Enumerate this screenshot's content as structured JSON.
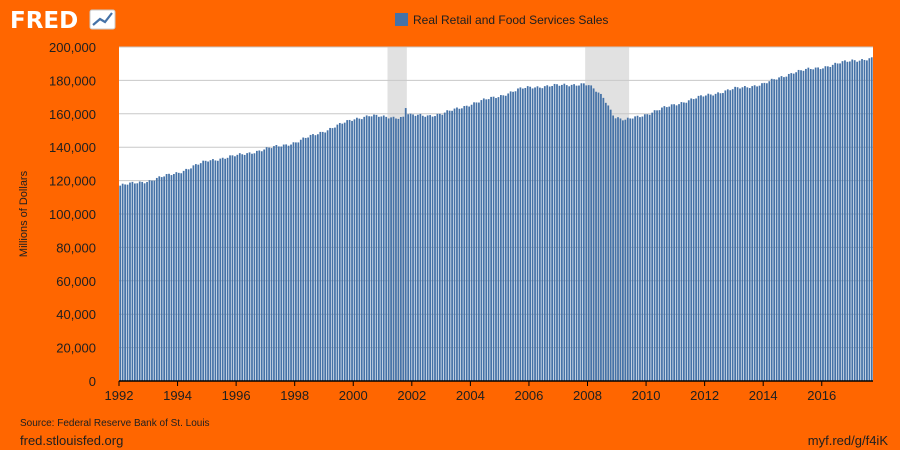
{
  "brand": {
    "name": "FRED",
    "logo_icon": "trend-chart-icon"
  },
  "footer": {
    "source": "Source: Federal Reserve Bank of St. Louis",
    "site": "fred.stlouisfed.org",
    "short_link": "myf.red/g/f4iK"
  },
  "colors": {
    "background": "#ff6600",
    "plot_bg": "#ffffff",
    "bar": "#4572a7",
    "recession": "#e1e1e1",
    "grid": "#c8c8c8"
  },
  "chart_data": {
    "type": "bar",
    "title": "",
    "legend": [
      "Real Retail and Food Services Sales"
    ],
    "legend_placement": "top-center",
    "ylabel": "Millions of Dollars",
    "xlabel": "",
    "ylim": [
      0,
      200000
    ],
    "xlim": [
      1992.0,
      2017.75
    ],
    "grid": true,
    "y_ticks": [
      0,
      20000,
      40000,
      60000,
      80000,
      100000,
      120000,
      140000,
      160000,
      180000,
      200000
    ],
    "y_tick_labels": [
      "0",
      "20,000",
      "40,000",
      "60,000",
      "80,000",
      "100,000",
      "120,000",
      "140,000",
      "160,000",
      "180,000",
      "200,000"
    ],
    "x_ticks": [
      1992,
      1994,
      1996,
      1998,
      2000,
      2002,
      2004,
      2006,
      2008,
      2010,
      2012,
      2014,
      2016
    ],
    "x_tick_labels": [
      "1992",
      "1994",
      "1996",
      "1998",
      "2000",
      "2002",
      "2004",
      "2006",
      "2008",
      "2010",
      "2012",
      "2014",
      "2016"
    ],
    "recessions": [
      [
        2001.17,
        2001.83
      ],
      [
        2007.92,
        2009.42
      ]
    ],
    "series": [
      {
        "name": "Real Retail and Food Services Sales",
        "frequency": "monthly",
        "start": 1992.0,
        "anchors": [
          [
            1992.0,
            117000
          ],
          [
            1993.0,
            120000
          ],
          [
            1994.0,
            125000
          ],
          [
            1995.0,
            132000
          ],
          [
            1996.0,
            135000
          ],
          [
            1997.0,
            139000
          ],
          [
            1998.0,
            143000
          ],
          [
            1999.0,
            150000
          ],
          [
            2000.0,
            157000
          ],
          [
            2000.5,
            159000
          ],
          [
            2001.0,
            158000
          ],
          [
            2001.7,
            158000
          ],
          [
            2001.75,
            164000
          ],
          [
            2001.85,
            159000
          ],
          [
            2002.5,
            159000
          ],
          [
            2003.0,
            160000
          ],
          [
            2004.0,
            166000
          ],
          [
            2005.0,
            171000
          ],
          [
            2005.7,
            175000
          ],
          [
            2006.0,
            176000
          ],
          [
            2007.0,
            177000
          ],
          [
            2007.8,
            178000
          ],
          [
            2008.0,
            177000
          ],
          [
            2008.5,
            170000
          ],
          [
            2008.9,
            158000
          ],
          [
            2009.25,
            156000
          ],
          [
            2009.6,
            158000
          ],
          [
            2010.0,
            160000
          ],
          [
            2011.0,
            166000
          ],
          [
            2012.0,
            171000
          ],
          [
            2013.0,
            175000
          ],
          [
            2014.0,
            178000
          ],
          [
            2015.0,
            185000
          ],
          [
            2016.0,
            188000
          ],
          [
            2017.0,
            192000
          ],
          [
            2017.6,
            193000
          ]
        ]
      }
    ]
  }
}
